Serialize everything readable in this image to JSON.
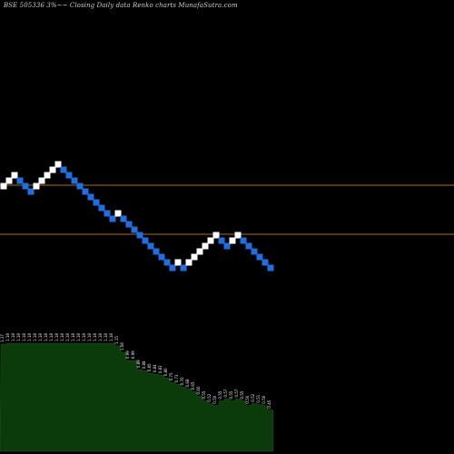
{
  "chart_data": {
    "type": "renko",
    "title": "BSE 505336  3%~~  Closing Daily data  Renko  charts MunafaSutra.com",
    "reference_lines_color": "#b06a1a",
    "up_brick_color": "#ffffff",
    "down_brick_color": "#1f6fe0",
    "volume_area_color": "#0b3a0b",
    "bricks": [
      {
        "dir": "up",
        "level": 0
      },
      {
        "dir": "up",
        "level": 1
      },
      {
        "dir": "up",
        "level": 2
      },
      {
        "dir": "down",
        "level": 1
      },
      {
        "dir": "down",
        "level": 0
      },
      {
        "dir": "down",
        "level": -1
      },
      {
        "dir": "up",
        "level": 0
      },
      {
        "dir": "up",
        "level": 1
      },
      {
        "dir": "up",
        "level": 2
      },
      {
        "dir": "up",
        "level": 3
      },
      {
        "dir": "up",
        "level": 4
      },
      {
        "dir": "down",
        "level": 3
      },
      {
        "dir": "down",
        "level": 2
      },
      {
        "dir": "down",
        "level": 1
      },
      {
        "dir": "down",
        "level": 0
      },
      {
        "dir": "down",
        "level": -1
      },
      {
        "dir": "down",
        "level": -2
      },
      {
        "dir": "down",
        "level": -3
      },
      {
        "dir": "down",
        "level": -4
      },
      {
        "dir": "down",
        "level": -5
      },
      {
        "dir": "down",
        "level": -6
      },
      {
        "dir": "up",
        "level": -5
      },
      {
        "dir": "down",
        "level": -6
      },
      {
        "dir": "down",
        "level": -7
      },
      {
        "dir": "down",
        "level": -8
      },
      {
        "dir": "down",
        "level": -9
      },
      {
        "dir": "down",
        "level": -10
      },
      {
        "dir": "down",
        "level": -11
      },
      {
        "dir": "down",
        "level": -12
      },
      {
        "dir": "down",
        "level": -13
      },
      {
        "dir": "down",
        "level": -14
      },
      {
        "dir": "down",
        "level": -15
      },
      {
        "dir": "up",
        "level": -14
      },
      {
        "dir": "down",
        "level": -15
      },
      {
        "dir": "up",
        "level": -14
      },
      {
        "dir": "up",
        "level": -13
      },
      {
        "dir": "up",
        "level": -12
      },
      {
        "dir": "up",
        "level": -11
      },
      {
        "dir": "up",
        "level": -10
      },
      {
        "dir": "up",
        "level": -9
      },
      {
        "dir": "down",
        "level": -10
      },
      {
        "dir": "down",
        "level": -11
      },
      {
        "dir": "up",
        "level": -10
      },
      {
        "dir": "up",
        "level": -9
      },
      {
        "dir": "down",
        "level": -10
      },
      {
        "dir": "down",
        "level": -11
      },
      {
        "dir": "down",
        "level": -12
      },
      {
        "dir": "down",
        "level": -13
      },
      {
        "dir": "down",
        "level": -14
      },
      {
        "dir": "down",
        "level": -15
      }
    ],
    "volume_labels": [
      "1.17",
      "1.18",
      "1.18",
      "1.18",
      "1.18",
      "1.18",
      "1.18",
      "1.18",
      "1.18",
      "1.18",
      "1.18",
      "1.18",
      "1.18",
      "1.18",
      "1.18",
      "1.18",
      "1.18",
      "1.18",
      "1.18",
      "1.18",
      "1.18",
      "1.15",
      "1.08",
      "0.99",
      "0.99",
      "0.89",
      "0.88",
      "0.85",
      "0.84",
      "0.83",
      "0.80",
      "0.75",
      "0.73",
      "0.70",
      "0.68",
      "0.65",
      "0.60",
      "0.55",
      "0.52",
      "0.50",
      "0.55",
      "0.57",
      "0.55",
      "0.57",
      "0.55",
      "0.50",
      "0.52",
      "0.51",
      "0.50",
      "0.45"
    ]
  }
}
